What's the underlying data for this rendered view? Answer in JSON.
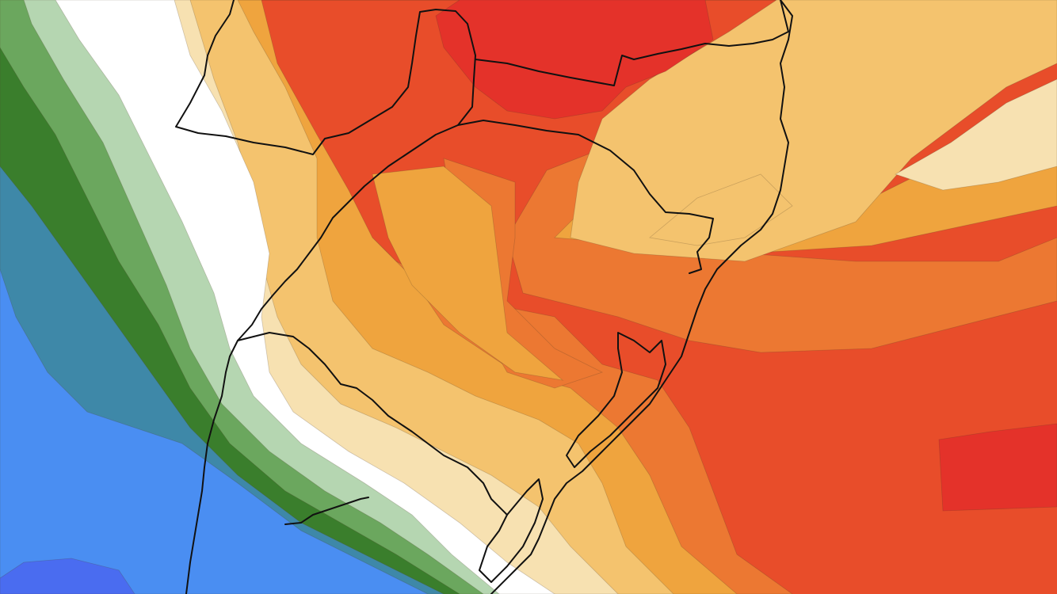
{
  "map": {
    "type": "filled-contour-anomaly",
    "palette": {
      "deep_blue": "#4a6cf0",
      "blue": "#4a8ef2",
      "teal": "#3e88a8",
      "dark_green": "#3a7e2c",
      "mid_green": "#6ba75e",
      "light_green": "#b5d6b1",
      "neutral": "#ffffff",
      "pale_yellow": "#f7e1b1",
      "light_orange": "#f4c36e",
      "orange": "#efa43e",
      "dark_orange": "#ec7832",
      "red_orange": "#e84d2a",
      "red": "#e4322a"
    },
    "border_color": "#111111"
  }
}
